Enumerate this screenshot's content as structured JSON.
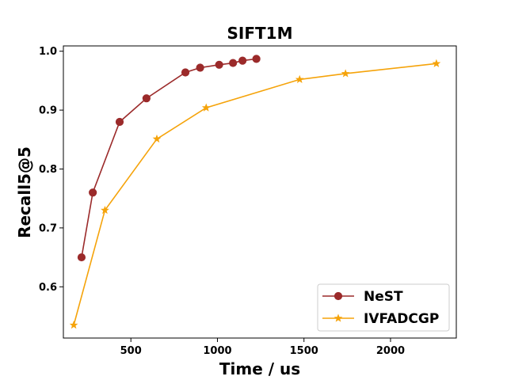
{
  "chart_data": {
    "type": "line",
    "title": "SIFT1M",
    "xlabel": "Time / us",
    "ylabel": "Recall5@5",
    "xlim": [
      110,
      2380
    ],
    "ylim": [
      0.513,
      1.009
    ],
    "xticks": [
      500,
      1000,
      1500,
      2000
    ],
    "yticks": [
      0.6,
      0.7,
      0.8,
      0.9,
      1.0
    ],
    "grid": false,
    "legend_position": "lower-right",
    "series": [
      {
        "name": "NeST",
        "color": "#9b2a2a",
        "marker": "circle",
        "x": [
          215,
          280,
          435,
          590,
          815,
          900,
          1010,
          1090,
          1145,
          1225
        ],
        "y": [
          0.65,
          0.76,
          0.88,
          0.92,
          0.964,
          0.972,
          0.977,
          0.98,
          0.984,
          0.987
        ]
      },
      {
        "name": "IVFADCGP",
        "color": "#f5a30a",
        "marker": "star",
        "x": [
          170,
          350,
          650,
          935,
          1475,
          1740,
          2265
        ],
        "y": [
          0.535,
          0.73,
          0.851,
          0.904,
          0.952,
          0.962,
          0.979
        ]
      }
    ]
  }
}
